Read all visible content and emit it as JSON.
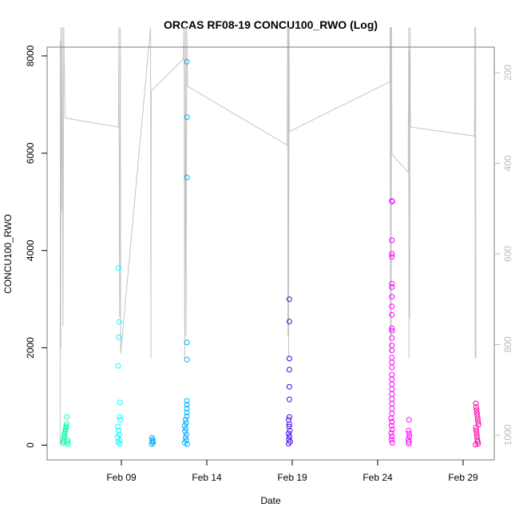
{
  "chart_data": {
    "type": "scatter",
    "title": "ORCAS RF08-19 CONCU100_RWO (Log)",
    "xlabel": "Date",
    "ylabel": "CONCU100_RWO",
    "x_axis": {
      "type": "date",
      "ticks": [
        {
          "value": "2016-02-09",
          "label": "Feb 09"
        },
        {
          "value": "2016-02-14",
          "label": "Feb 14"
        },
        {
          "value": "2016-02-19",
          "label": "Feb 19"
        },
        {
          "value": "2016-02-24",
          "label": "Feb 24"
        },
        {
          "value": "2016-02-29",
          "label": "Feb 29"
        }
      ]
    },
    "y_axis": {
      "ticks": [
        0,
        2000,
        4000,
        6000,
        8000
      ]
    },
    "y2_axis": {
      "reversed": true,
      "ticks": [
        200,
        400,
        600,
        800,
        1000
      ],
      "color": "#bbbbbb"
    },
    "grid": false,
    "series": [
      {
        "color": "#00ffaa",
        "points": [
          {
            "x": "2016-02-05T14:00",
            "y": 40
          },
          {
            "x": "2016-02-05T14:30",
            "y": 80
          },
          {
            "x": "2016-02-05T15:00",
            "y": 120
          },
          {
            "x": "2016-02-05T15:30",
            "y": 160
          },
          {
            "x": "2016-02-05T16:00",
            "y": 200
          },
          {
            "x": "2016-02-05T16:30",
            "y": 240
          },
          {
            "x": "2016-02-05T17:00",
            "y": 280
          },
          {
            "x": "2016-02-05T17:30",
            "y": 320
          },
          {
            "x": "2016-02-05T18:00",
            "y": 360
          },
          {
            "x": "2016-02-05T18:30",
            "y": 390
          },
          {
            "x": "2016-02-05T19:00",
            "y": 440
          },
          {
            "x": "2016-02-05T19:30",
            "y": 580
          },
          {
            "x": "2016-02-05T20:00",
            "y": 60
          },
          {
            "x": "2016-02-05T20:30",
            "y": 100
          },
          {
            "x": "2016-02-05T21:00",
            "y": 20
          }
        ]
      },
      {
        "color": "#00ffff",
        "points": [
          {
            "x": "2016-02-08T20:00",
            "y": 3640
          },
          {
            "x": "2016-02-08T21:00",
            "y": 2530
          },
          {
            "x": "2016-02-08T20:30",
            "y": 2220
          },
          {
            "x": "2016-02-08T19:30",
            "y": 1630
          },
          {
            "x": "2016-02-08T22:00",
            "y": 880
          },
          {
            "x": "2016-02-08T21:30",
            "y": 580
          },
          {
            "x": "2016-02-08T22:30",
            "y": 520
          },
          {
            "x": "2016-02-08T19:00",
            "y": 380
          },
          {
            "x": "2016-02-08T20:00",
            "y": 300
          },
          {
            "x": "2016-02-08T21:00",
            "y": 220
          },
          {
            "x": "2016-02-08T18:30",
            "y": 160
          },
          {
            "x": "2016-02-08T22:00",
            "y": 100
          },
          {
            "x": "2016-02-08T19:30",
            "y": 60
          },
          {
            "x": "2016-02-08T21:30",
            "y": 30
          }
        ]
      },
      {
        "color": "#00aaff",
        "points": [
          {
            "x": "2016-02-10T19:00",
            "y": 150
          },
          {
            "x": "2016-02-10T20:00",
            "y": 110
          },
          {
            "x": "2016-02-10T19:30",
            "y": 80
          },
          {
            "x": "2016-02-10T20:30",
            "y": 50
          },
          {
            "x": "2016-02-10T18:30",
            "y": 20
          },
          {
            "x": "2016-02-12T20:00",
            "y": 7880
          },
          {
            "x": "2016-02-12T20:00",
            "y": 6740
          },
          {
            "x": "2016-02-12T20:00",
            "y": 5500
          },
          {
            "x": "2016-02-12T20:00",
            "y": 2110
          },
          {
            "x": "2016-02-12T20:00",
            "y": 1760
          },
          {
            "x": "2016-02-12T20:00",
            "y": 910
          },
          {
            "x": "2016-02-12T20:00",
            "y": 830
          },
          {
            "x": "2016-02-12T20:00",
            "y": 750
          },
          {
            "x": "2016-02-12T20:00",
            "y": 670
          },
          {
            "x": "2016-02-12T20:00",
            "y": 590
          },
          {
            "x": "2016-02-12T18:00",
            "y": 520
          },
          {
            "x": "2016-02-12T19:00",
            "y": 460
          },
          {
            "x": "2016-02-12T17:00",
            "y": 400
          },
          {
            "x": "2016-02-12T18:30",
            "y": 340
          },
          {
            "x": "2016-02-12T17:30",
            "y": 280
          },
          {
            "x": "2016-02-12T19:30",
            "y": 220
          },
          {
            "x": "2016-02-12T18:00",
            "y": 160
          },
          {
            "x": "2016-02-12T19:00",
            "y": 100
          },
          {
            "x": "2016-02-12T17:00",
            "y": 50
          },
          {
            "x": "2016-02-12T20:30",
            "y": 20
          }
        ]
      },
      {
        "color": "#4400ff",
        "points": [
          {
            "x": "2016-02-18T20:00",
            "y": 3000
          },
          {
            "x": "2016-02-18T20:00",
            "y": 2540
          },
          {
            "x": "2016-02-18T20:00",
            "y": 1780
          },
          {
            "x": "2016-02-18T20:00",
            "y": 1550
          },
          {
            "x": "2016-02-18T20:00",
            "y": 1200
          },
          {
            "x": "2016-02-18T20:00",
            "y": 940
          },
          {
            "x": "2016-02-18T20:00",
            "y": 580
          },
          {
            "x": "2016-02-18T19:00",
            "y": 520
          },
          {
            "x": "2016-02-18T20:00",
            "y": 430
          },
          {
            "x": "2016-02-18T19:30",
            "y": 380
          },
          {
            "x": "2016-02-18T20:30",
            "y": 300
          },
          {
            "x": "2016-02-18T19:00",
            "y": 240
          },
          {
            "x": "2016-02-18T20:00",
            "y": 180
          },
          {
            "x": "2016-02-18T19:30",
            "y": 120
          },
          {
            "x": "2016-02-18T21:00",
            "y": 70
          },
          {
            "x": "2016-02-18T19:00",
            "y": 30
          }
        ]
      },
      {
        "color": "#ff00ff",
        "points": [
          {
            "x": "2016-02-24T20:00",
            "y": 5020
          },
          {
            "x": "2016-02-24T20:30",
            "y": 5010
          },
          {
            "x": "2016-02-24T20:00",
            "y": 4210
          },
          {
            "x": "2016-02-24T20:00",
            "y": 3930
          },
          {
            "x": "2016-02-24T20:00",
            "y": 3870
          },
          {
            "x": "2016-02-24T20:00",
            "y": 3320
          },
          {
            "x": "2016-02-24T20:00",
            "y": 3250
          },
          {
            "x": "2016-02-24T20:00",
            "y": 3050
          },
          {
            "x": "2016-02-24T20:00",
            "y": 2850
          },
          {
            "x": "2016-02-24T20:00",
            "y": 2680
          },
          {
            "x": "2016-02-24T20:00",
            "y": 2400
          },
          {
            "x": "2016-02-24T20:00",
            "y": 2350
          },
          {
            "x": "2016-02-24T20:00",
            "y": 2200
          },
          {
            "x": "2016-02-24T20:00",
            "y": 2050
          },
          {
            "x": "2016-02-24T20:00",
            "y": 1950
          },
          {
            "x": "2016-02-24T20:00",
            "y": 1800
          },
          {
            "x": "2016-02-24T20:00",
            "y": 1700
          },
          {
            "x": "2016-02-24T20:00",
            "y": 1600
          },
          {
            "x": "2016-02-24T20:00",
            "y": 1450
          },
          {
            "x": "2016-02-24T20:00",
            "y": 1350
          },
          {
            "x": "2016-02-24T20:00",
            "y": 1250
          },
          {
            "x": "2016-02-24T20:00",
            "y": 1150
          },
          {
            "x": "2016-02-24T20:00",
            "y": 1050
          },
          {
            "x": "2016-02-24T20:00",
            "y": 950
          },
          {
            "x": "2016-02-24T20:00",
            "y": 850
          },
          {
            "x": "2016-02-24T20:00",
            "y": 750
          },
          {
            "x": "2016-02-24T20:00",
            "y": 650
          },
          {
            "x": "2016-02-24T19:00",
            "y": 550
          },
          {
            "x": "2016-02-24T20:00",
            "y": 480
          },
          {
            "x": "2016-02-24T19:30",
            "y": 400
          },
          {
            "x": "2016-02-24T20:30",
            "y": 320
          },
          {
            "x": "2016-02-24T19:00",
            "y": 250
          },
          {
            "x": "2016-02-24T20:00",
            "y": 180
          },
          {
            "x": "2016-02-24T19:30",
            "y": 110
          },
          {
            "x": "2016-02-24T20:30",
            "y": 50
          },
          {
            "x": "2016-02-25T20:00",
            "y": 520
          },
          {
            "x": "2016-02-25T19:30",
            "y": 300
          },
          {
            "x": "2016-02-25T20:00",
            "y": 240
          },
          {
            "x": "2016-02-25T20:30",
            "y": 180
          },
          {
            "x": "2016-02-25T19:00",
            "y": 120
          },
          {
            "x": "2016-02-25T20:00",
            "y": 70
          },
          {
            "x": "2016-02-25T19:30",
            "y": 30
          }
        ]
      },
      {
        "color": "#ff00aa",
        "points": [
          {
            "x": "2016-02-29T18:00",
            "y": 860
          },
          {
            "x": "2016-02-29T18:30",
            "y": 780
          },
          {
            "x": "2016-02-29T19:00",
            "y": 720
          },
          {
            "x": "2016-02-29T19:30",
            "y": 660
          },
          {
            "x": "2016-02-29T20:00",
            "y": 600
          },
          {
            "x": "2016-02-29T20:30",
            "y": 540
          },
          {
            "x": "2016-02-29T21:00",
            "y": 480
          },
          {
            "x": "2016-02-29T21:30",
            "y": 420
          },
          {
            "x": "2016-02-29T18:00",
            "y": 360
          },
          {
            "x": "2016-02-29T18:30",
            "y": 300
          },
          {
            "x": "2016-02-29T19:00",
            "y": 240
          },
          {
            "x": "2016-02-29T19:30",
            "y": 180
          },
          {
            "x": "2016-02-29T20:00",
            "y": 120
          },
          {
            "x": "2016-02-29T20:30",
            "y": 70
          },
          {
            "x": "2016-02-29T21:00",
            "y": 30
          },
          {
            "x": "2016-02-29T17:30",
            "y": 10
          }
        ]
      }
    ],
    "overlay_line": {
      "axis": "y2",
      "color": "#c4c4c4",
      "points": [
        {
          "x": "2016-02-05T10:00",
          "y": 1020
        },
        {
          "x": "2016-02-05T10:10",
          "y": 130
        },
        {
          "x": "2016-02-05T10:20",
          "y": 810
        },
        {
          "x": "2016-02-05T10:30",
          "y": 700
        },
        {
          "x": "2016-02-05T10:50",
          "y": 810
        },
        {
          "x": "2016-02-05T11:10",
          "y": 100
        },
        {
          "x": "2016-02-05T12:00",
          "y": 510
        },
        {
          "x": "2016-02-05T13:00",
          "y": 100
        },
        {
          "x": "2016-02-05T14:00",
          "y": 760
        },
        {
          "x": "2016-02-05T15:00",
          "y": 100
        },
        {
          "x": "2016-02-05T17:00",
          "y": 300
        },
        {
          "x": "2016-02-08T20:00",
          "y": 320
        },
        {
          "x": "2016-02-08T20:30",
          "y": 100
        },
        {
          "x": "2016-02-08T21:30",
          "y": 740
        },
        {
          "x": "2016-02-08T22:30",
          "y": 100
        },
        {
          "x": "2016-02-08T23:00",
          "y": 820
        },
        {
          "x": "2016-02-10T17:00",
          "y": 100
        },
        {
          "x": "2016-02-10T17:30",
          "y": 830
        },
        {
          "x": "2016-02-10T18:00",
          "y": 240
        },
        {
          "x": "2016-02-12T15:00",
          "y": 170
        },
        {
          "x": "2016-02-12T16:00",
          "y": 100
        },
        {
          "x": "2016-02-12T17:00",
          "y": 830
        },
        {
          "x": "2016-02-12T18:00",
          "y": 100
        },
        {
          "x": "2016-02-12T19:00",
          "y": 780
        },
        {
          "x": "2016-02-12T20:00",
          "y": 100
        },
        {
          "x": "2016-02-12T21:00",
          "y": 230
        },
        {
          "x": "2016-02-18T17:00",
          "y": 360
        },
        {
          "x": "2016-02-18T17:30",
          "y": 100
        },
        {
          "x": "2016-02-18T18:00",
          "y": 780
        },
        {
          "x": "2016-02-18T18:30",
          "y": 100
        },
        {
          "x": "2016-02-18T19:00",
          "y": 830
        },
        {
          "x": "2016-02-18T19:30",
          "y": 100
        },
        {
          "x": "2016-02-18T20:00",
          "y": 330
        },
        {
          "x": "2016-02-24T17:00",
          "y": 220
        },
        {
          "x": "2016-02-24T17:30",
          "y": 100
        },
        {
          "x": "2016-02-24T18:00",
          "y": 820
        },
        {
          "x": "2016-02-24T18:30",
          "y": 100
        },
        {
          "x": "2016-02-24T19:00",
          "y": 780
        },
        {
          "x": "2016-02-24T19:30",
          "y": 100
        },
        {
          "x": "2016-02-24T20:00",
          "y": 380
        },
        {
          "x": "2016-02-25T19:00",
          "y": 420
        },
        {
          "x": "2016-02-25T19:30",
          "y": 100
        },
        {
          "x": "2016-02-25T20:00",
          "y": 830
        },
        {
          "x": "2016-02-25T20:30",
          "y": 150
        },
        {
          "x": "2016-02-25T21:00",
          "y": 740
        },
        {
          "x": "2016-02-25T21:30",
          "y": 100
        },
        {
          "x": "2016-02-25T22:00",
          "y": 320
        },
        {
          "x": "2016-02-29T16:00",
          "y": 340
        },
        {
          "x": "2016-02-29T16:30",
          "y": 100
        },
        {
          "x": "2016-02-29T17:00",
          "y": 830
        },
        {
          "x": "2016-02-29T17:30",
          "y": 100
        },
        {
          "x": "2016-02-29T18:00",
          "y": 830
        }
      ]
    }
  }
}
